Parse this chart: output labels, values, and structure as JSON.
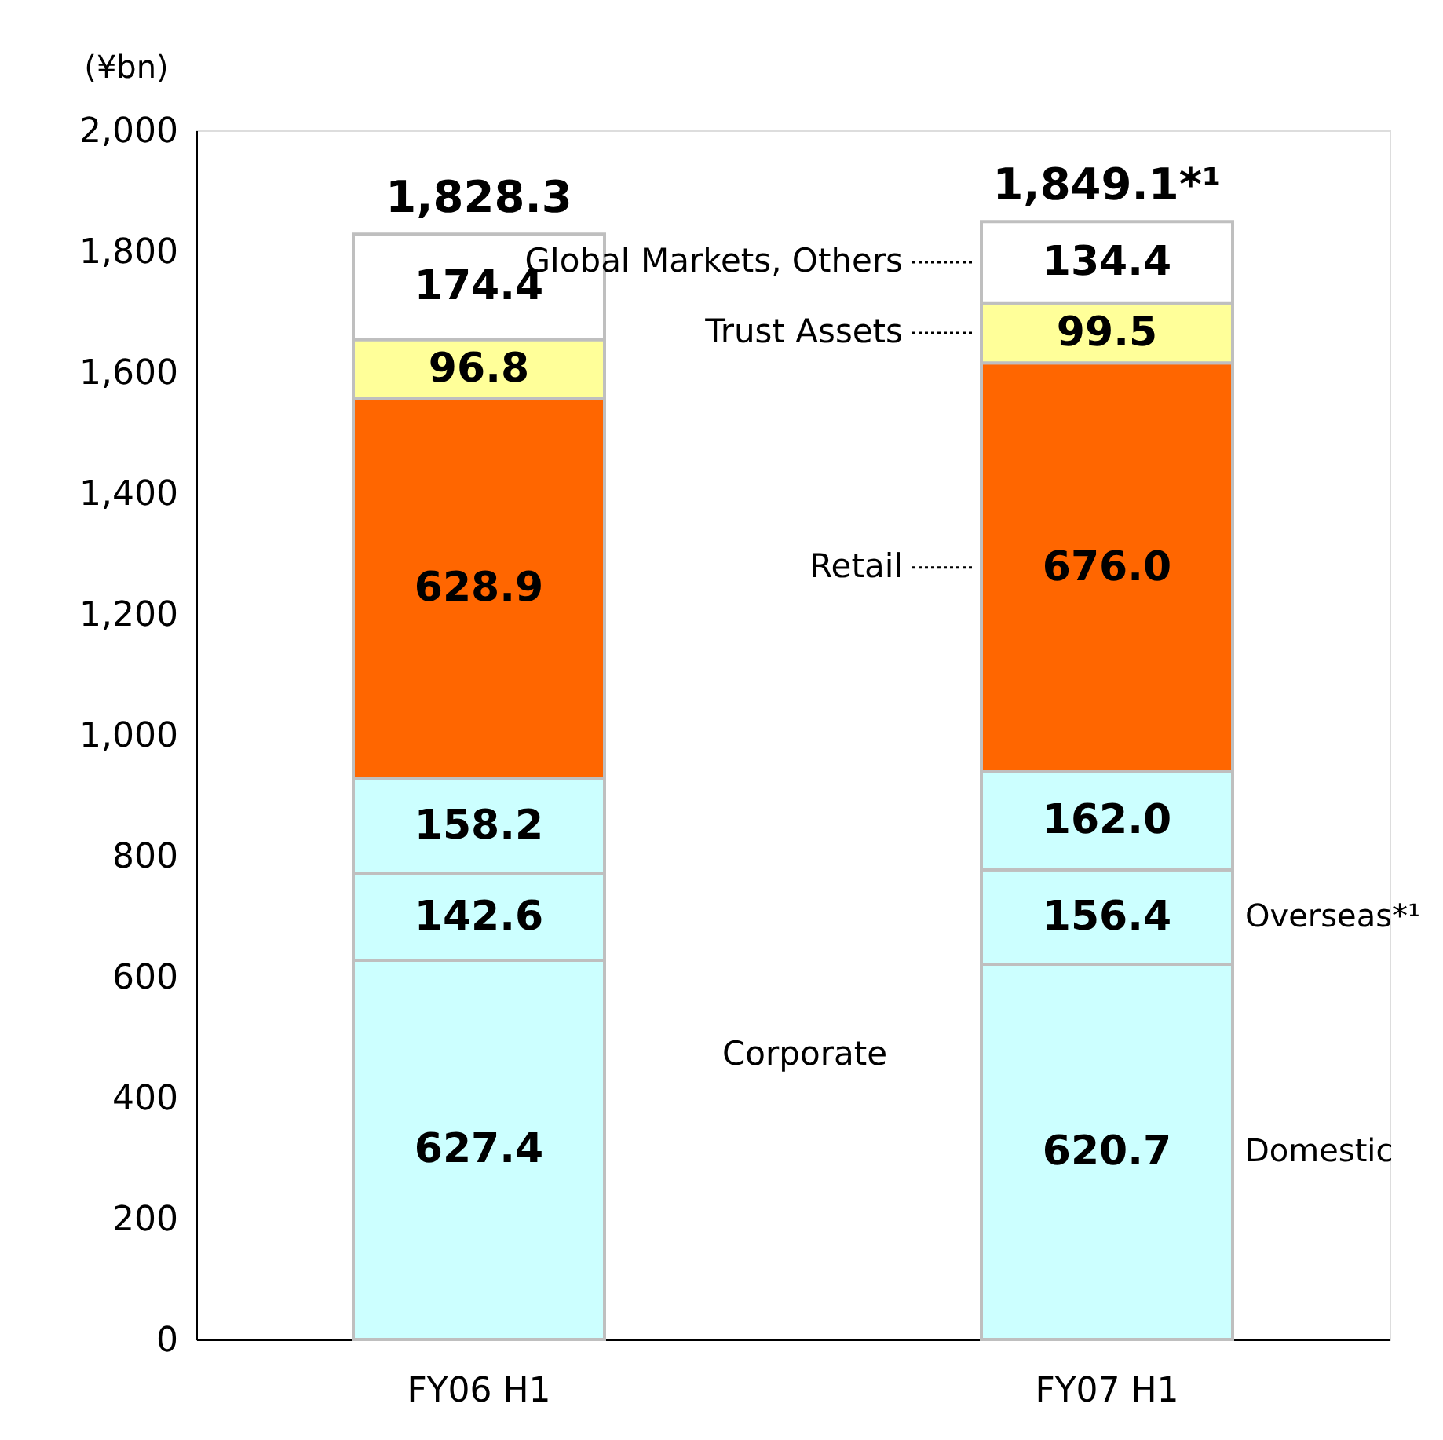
{
  "chart_data": {
    "type": "bar",
    "stacked": true,
    "ylabel": "(¥bn)",
    "categories": [
      "FY06 H1",
      "FY07 H1"
    ],
    "series": [
      {
        "name": "Domestic",
        "color": "#ccffff",
        "values": [
          627.4,
          620.7
        ],
        "value_labels": [
          "627.4",
          "620.7"
        ]
      },
      {
        "name": "Overseas*¹",
        "color": "#ccffff",
        "values": [
          142.6,
          156.4
        ],
        "value_labels": [
          "142.6",
          "156.4"
        ]
      },
      {
        "color": "#ccffff",
        "values": [
          158.2,
          162.0
        ],
        "value_labels": [
          "158.2",
          "162.0"
        ]
      },
      {
        "name": "Retail",
        "color": "#ff6600",
        "values": [
          628.9,
          676.0
        ],
        "value_labels": [
          "628.9",
          "676.0"
        ]
      },
      {
        "name": "Trust Assets",
        "color": "#ffff99",
        "values": [
          96.8,
          99.5
        ],
        "value_labels": [
          "96.8",
          "99.5"
        ]
      },
      {
        "name": "Global Markets, Others",
        "color": "#ffffff",
        "values": [
          174.4,
          134.4
        ],
        "value_labels": [
          "174.4",
          "134.4"
        ]
      }
    ],
    "ylim": [
      0,
      2000
    ],
    "yticks": [
      0,
      {
        "value": 200,
        "label": "200"
      },
      {
        "value": 400,
        "label": "400"
      },
      {
        "value": 600,
        "label": "600"
      },
      {
        "value": 800,
        "label": "800"
      },
      {
        "value": 1000,
        "label": "1,000"
      },
      {
        "value": 1200,
        "label": "1,200"
      },
      {
        "value": 1400,
        "label": "1,400"
      },
      {
        "value": 1600,
        "label": "1,600"
      },
      {
        "value": 1800,
        "label": "1,800"
      },
      {
        "value": 2000,
        "label": "2,000"
      }
    ],
    "totals": [
      "1,828.3",
      "1,849.1*¹"
    ],
    "annotations": [
      "Corporate"
    ],
    "grid": false
  }
}
